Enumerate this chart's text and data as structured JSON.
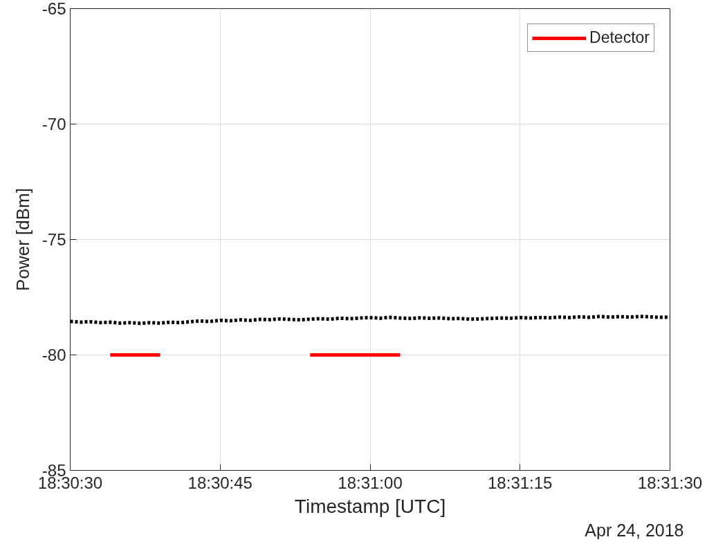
{
  "chart_data": {
    "type": "line",
    "xlabel": "Timestamp [UTC]",
    "ylabel": "Power [dBm]",
    "annotations": [
      "Apr 24, 2018"
    ],
    "xlim": [
      18.508333,
      18.525
    ],
    "ylim": [
      -85,
      -65
    ],
    "xticks": [
      {
        "value": 18.508333,
        "label": "18:30:30"
      },
      {
        "value": 18.5125,
        "label": "18:30:45"
      },
      {
        "value": 18.516667,
        "label": "18:31:00"
      },
      {
        "value": 18.520833,
        "label": "18:31:15"
      },
      {
        "value": 18.525,
        "label": "18:31:30"
      }
    ],
    "yticks": [
      -85,
      -80,
      -75,
      -70,
      -65
    ],
    "grid": true,
    "legend": "top right",
    "marker": "none",
    "series": [
      {
        "color": "#000000",
        "line_style": "dotted",
        "x": [
          18.508333,
          18.508611,
          18.508889,
          18.509167,
          18.509444,
          18.509722,
          18.51,
          18.510278,
          18.510556,
          18.510833,
          18.511111,
          18.511389,
          18.511667,
          18.511944,
          18.512222,
          18.5125,
          18.512778,
          18.513056,
          18.513333,
          18.513611,
          18.513889,
          18.514167,
          18.514444,
          18.514722,
          18.515,
          18.515278,
          18.515556,
          18.515833,
          18.516111,
          18.516389,
          18.516667,
          18.516944,
          18.517222,
          18.5175,
          18.517778,
          18.518056,
          18.518333,
          18.518611,
          18.518889,
          18.519167,
          18.519444,
          18.519722,
          18.52,
          18.520278,
          18.520556,
          18.520833,
          18.521111,
          18.521389,
          18.521667,
          18.521944,
          18.522222,
          18.5225,
          18.522778,
          18.523056,
          18.523333,
          18.523611,
          18.523889,
          18.524167,
          18.524444,
          18.524722,
          18.525
        ],
        "values": [
          -78.55,
          -78.58,
          -78.56,
          -78.6,
          -78.58,
          -78.62,
          -78.6,
          -78.63,
          -78.6,
          -78.62,
          -78.58,
          -78.6,
          -78.56,
          -78.53,
          -78.55,
          -78.5,
          -78.52,
          -78.48,
          -78.5,
          -78.46,
          -78.47,
          -78.44,
          -78.46,
          -78.48,
          -78.45,
          -78.43,
          -78.45,
          -78.41,
          -78.43,
          -78.4,
          -78.38,
          -78.41,
          -78.37,
          -78.4,
          -78.42,
          -78.39,
          -78.41,
          -78.4,
          -78.43,
          -78.42,
          -78.45,
          -78.44,
          -78.42,
          -78.4,
          -78.41,
          -78.38,
          -78.4,
          -78.38,
          -78.39,
          -78.36,
          -78.38,
          -78.35,
          -78.37,
          -78.33,
          -78.36,
          -78.34,
          -78.36,
          -78.33,
          -78.35,
          -78.37,
          -78.36
        ]
      },
      {
        "name": "Detector",
        "color": "#ff0000",
        "line_style": "solid",
        "x": [
          18.509444,
          18.510833,
          18.512778,
          18.515,
          18.5175
        ],
        "values": [
          -80,
          -80,
          null,
          -80,
          -80
        ]
      }
    ]
  }
}
